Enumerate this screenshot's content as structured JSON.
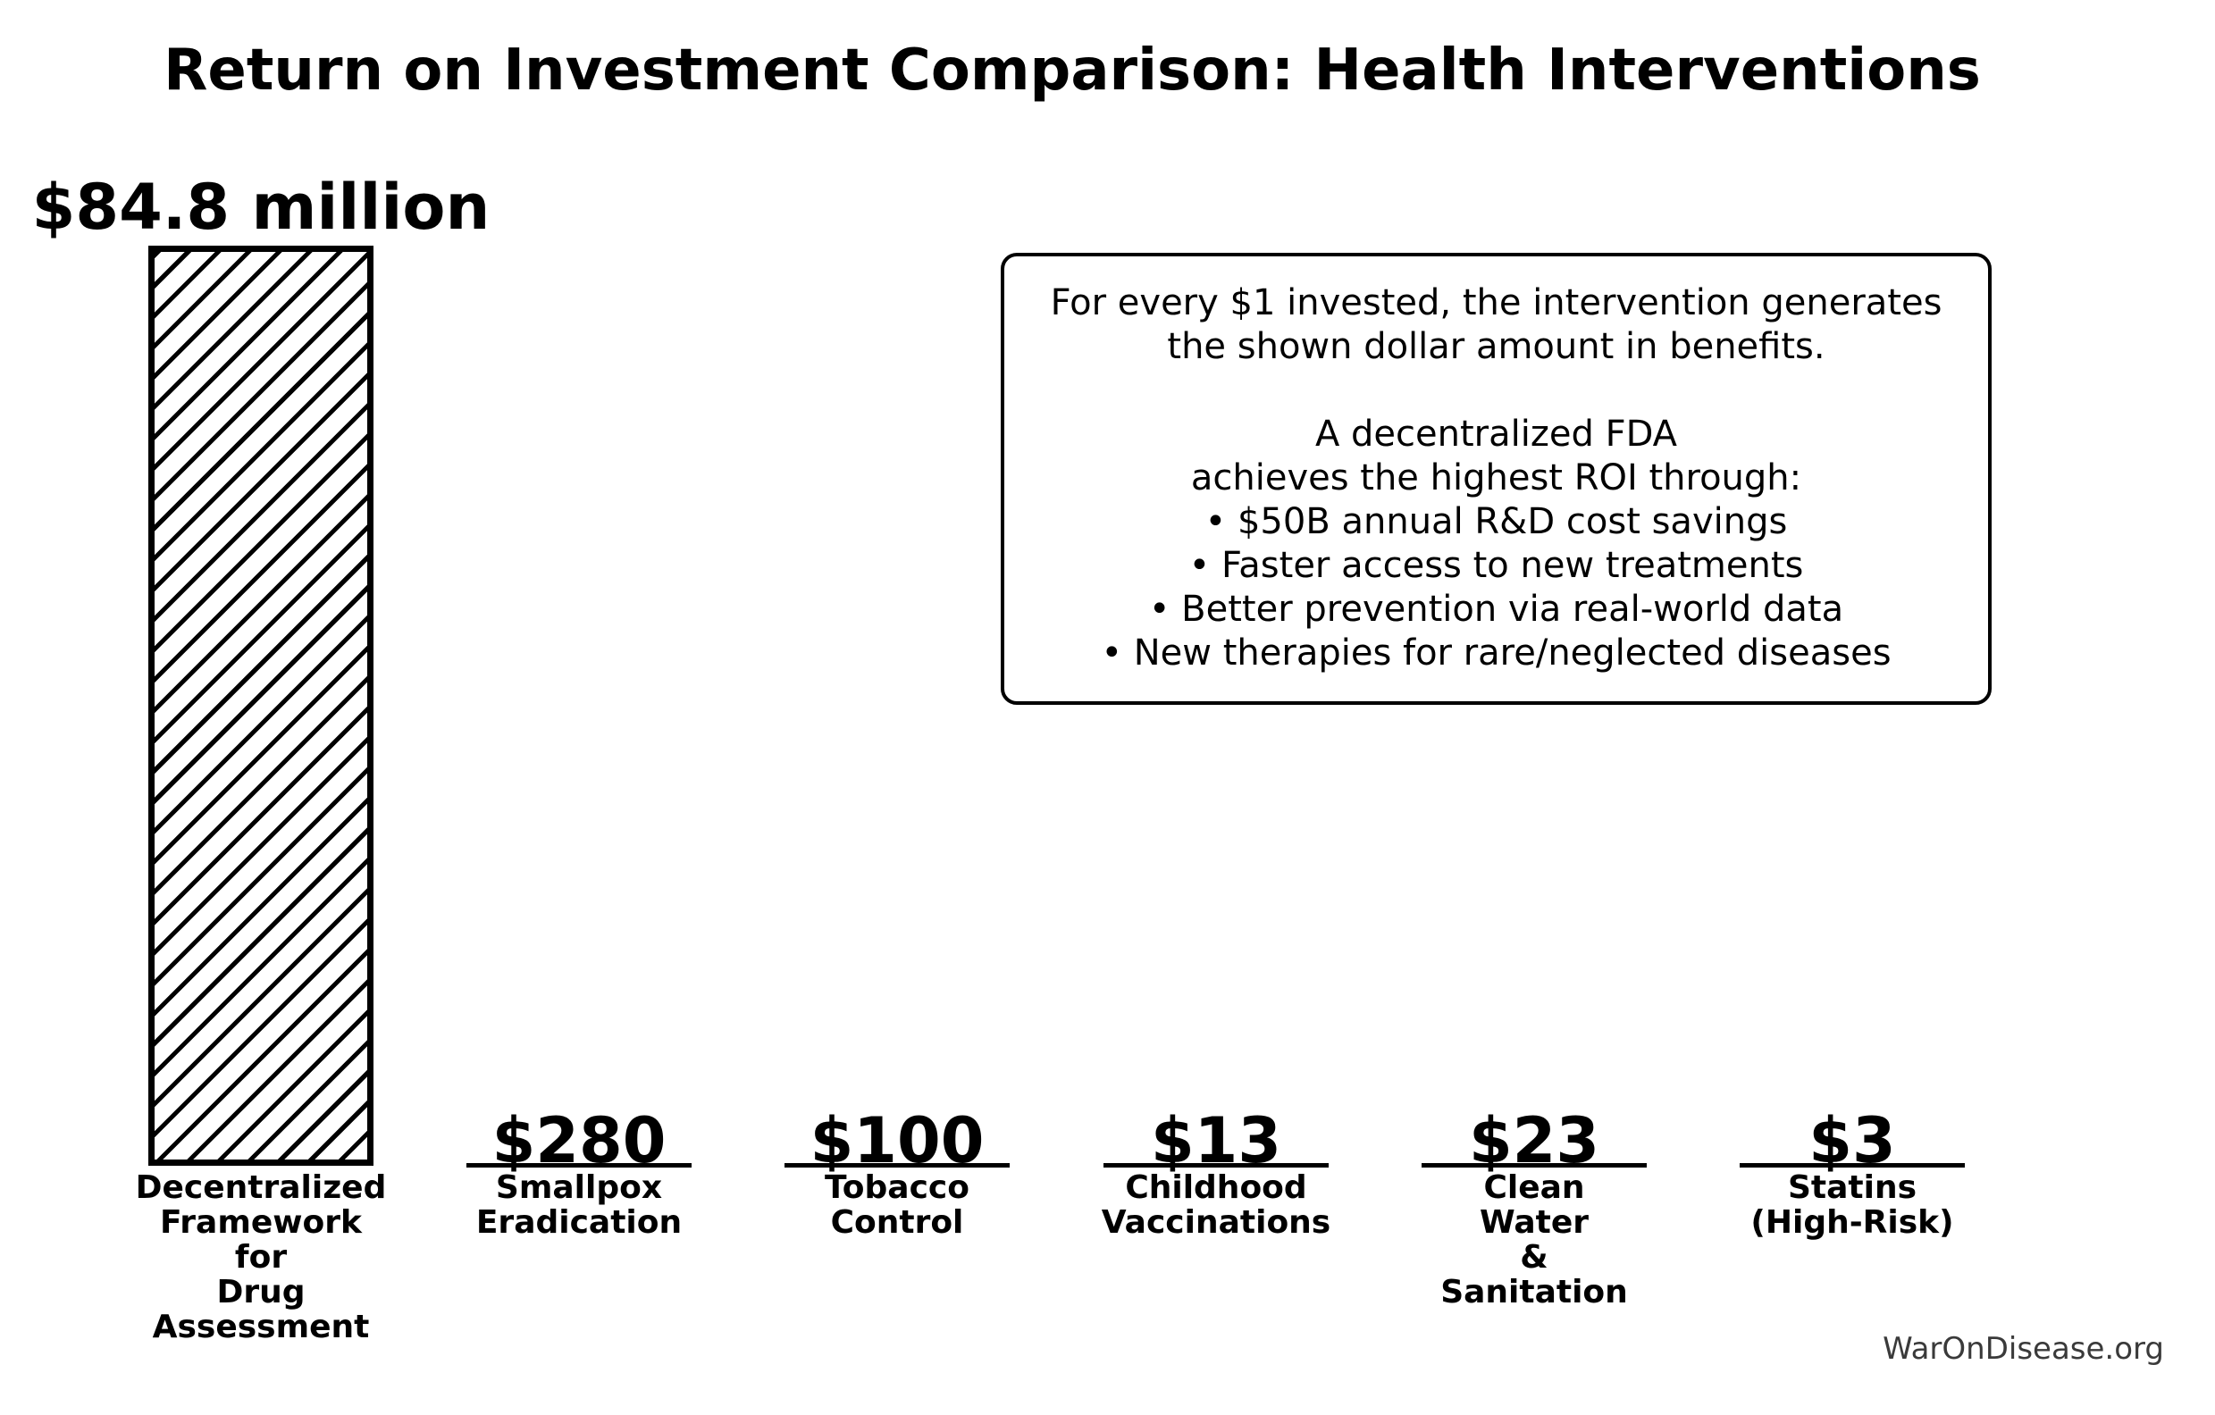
{
  "watermark": "WarOnDisease.org",
  "annotation": {
    "lines": [
      "For every $1 invested, the intervention generates",
      "the shown dollar amount in benefits.",
      "",
      "A decentralized FDA",
      "achieves the highest ROI through:",
      "• $50B annual R&D cost savings",
      "• Faster access to new treatments",
      "• Better prevention via real-world data",
      "• New therapies for rare/neglected diseases"
    ]
  },
  "chart_data": {
    "type": "bar",
    "title": "Return on Investment Comparison: Health Interventions",
    "categories": [
      "Decentralized Framework for Drug Assessment",
      "Smallpox Eradication",
      "Tobacco Control",
      "Childhood Vaccinations",
      "Clean Water & Sanitation",
      "Statins (High-Risk)"
    ],
    "category_label_lines": [
      [
        "Decentralized",
        "Framework",
        "for",
        "Drug",
        "Assessment"
      ],
      [
        "Smallpox",
        "Eradication"
      ],
      [
        "Tobacco",
        "Control"
      ],
      [
        "Childhood",
        "Vaccinations"
      ],
      [
        "Clean",
        "Water",
        "&",
        "Sanitation"
      ],
      [
        "Statins",
        "(High-Risk)"
      ]
    ],
    "values": [
      84800000,
      280,
      100,
      13,
      23,
      3
    ],
    "value_labels": [
      "$84.8 million",
      "$280",
      "$100",
      "$13",
      "$23",
      "$3"
    ],
    "unit": "benefit dollars per $1 invested",
    "ylim": [
      0,
      84800000
    ],
    "grid": false,
    "legend": false,
    "bar_style": {
      "fill_color": "#ffffff",
      "edge_color": "#000000",
      "hatch": "/"
    }
  }
}
